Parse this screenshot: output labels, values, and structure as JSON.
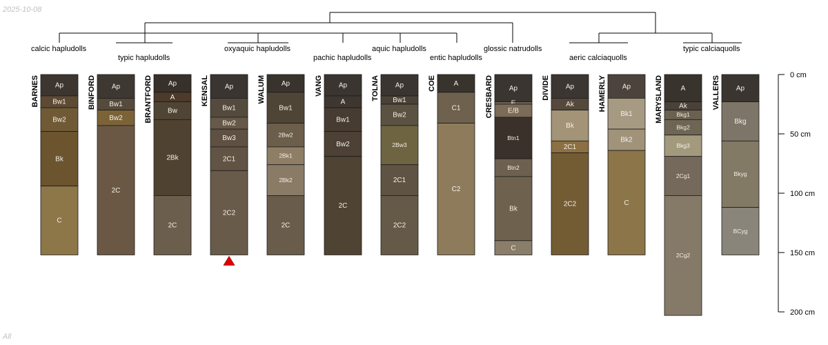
{
  "meta": {
    "date": "2025-10-08",
    "footer": "All"
  },
  "chart_data": {
    "type": "soil-profile-sketch",
    "depth_axis": {
      "unit": "cm",
      "range": [
        0,
        200
      ],
      "ticks": [
        0,
        50,
        100,
        150,
        200
      ],
      "tick_labels": [
        "0 cm",
        "50 cm",
        "100 cm",
        "150 cm",
        "200 cm"
      ]
    },
    "taxonomy_labels": [
      {
        "label": "calcic hapludolls"
      },
      {
        "label": "typic hapludolls"
      },
      {
        "label": "oxyaquic hapludolls"
      },
      {
        "label": "pachic hapludolls"
      },
      {
        "label": "aquic hapludolls"
      },
      {
        "label": "entic hapludolls"
      },
      {
        "label": "glossic natrudolls"
      },
      {
        "label": "aeric calciaquolls"
      },
      {
        "label": "typic calciaquolls"
      }
    ],
    "profiles": [
      {
        "name": "BARNES",
        "horizons": [
          {
            "name": "Ap",
            "top": 0,
            "bottom": 18,
            "color": "#3d3530"
          },
          {
            "name": "Bw1",
            "top": 18,
            "bottom": 28,
            "color": "#5e4a34"
          },
          {
            "name": "Bw2",
            "top": 28,
            "bottom": 48,
            "color": "#705a36"
          },
          {
            "name": "Bk",
            "top": 48,
            "bottom": 94,
            "color": "#6b542e"
          },
          {
            "name": "C",
            "top": 94,
            "bottom": 152,
            "color": "#8d7749"
          }
        ]
      },
      {
        "name": "BINFORD",
        "horizons": [
          {
            "name": "Ap",
            "top": 0,
            "bottom": 20,
            "color": "#3e3833"
          },
          {
            "name": "Bw1",
            "top": 20,
            "bottom": 30,
            "color": "#564a3d"
          },
          {
            "name": "Bw2",
            "top": 30,
            "bottom": 43,
            "color": "#7c6337"
          },
          {
            "name": "2C",
            "top": 43,
            "bottom": 152,
            "color": "#6a5845"
          }
        ]
      },
      {
        "name": "BRANTFORD",
        "horizons": [
          {
            "name": "Ap",
            "top": 0,
            "bottom": 15,
            "color": "#37302b"
          },
          {
            "name": "A",
            "top": 15,
            "bottom": 23,
            "color": "#4c3a2a"
          },
          {
            "name": "Bw",
            "top": 23,
            "bottom": 38,
            "color": "#504434"
          },
          {
            "name": "2Bk",
            "top": 38,
            "bottom": 102,
            "color": "#4f4231"
          },
          {
            "name": "2C",
            "top": 102,
            "bottom": 152,
            "color": "#6b5e4d"
          }
        ]
      },
      {
        "name": "KENSAL",
        "marker": "triangle",
        "horizons": [
          {
            "name": "Ap",
            "top": 0,
            "bottom": 20,
            "color": "#3a3531"
          },
          {
            "name": "Bw1",
            "top": 20,
            "bottom": 36,
            "color": "#554a3e"
          },
          {
            "name": "Bw2",
            "top": 36,
            "bottom": 46,
            "color": "#66594a"
          },
          {
            "name": "Bw3",
            "top": 46,
            "bottom": 61,
            "color": "#5e5142"
          },
          {
            "name": "2C1",
            "top": 61,
            "bottom": 81,
            "color": "#625444"
          },
          {
            "name": "2C2",
            "top": 81,
            "bottom": 152,
            "color": "#695b4a"
          }
        ]
      },
      {
        "name": "WALUM",
        "horizons": [
          {
            "name": "Ap",
            "top": 0,
            "bottom": 15,
            "color": "#39332e"
          },
          {
            "name": "Bw1",
            "top": 15,
            "bottom": 41,
            "color": "#4f4537"
          },
          {
            "name": "2Bw2",
            "top": 41,
            "bottom": 61,
            "color": "#6b5e4a"
          },
          {
            "name": "2Bk1",
            "top": 61,
            "bottom": 76,
            "color": "#8f7e66"
          },
          {
            "name": "2Bk2",
            "top": 76,
            "bottom": 102,
            "color": "#8a7b67"
          },
          {
            "name": "2C",
            "top": 102,
            "bottom": 152,
            "color": "#6a5c4a"
          }
        ]
      },
      {
        "name": "VANG",
        "horizons": [
          {
            "name": "Ap",
            "top": 0,
            "bottom": 18,
            "color": "#3a3530"
          },
          {
            "name": "A",
            "top": 18,
            "bottom": 28,
            "color": "#3e3630"
          },
          {
            "name": "Bw1",
            "top": 28,
            "bottom": 48,
            "color": "#463c32"
          },
          {
            "name": "Bw2",
            "top": 48,
            "bottom": 69,
            "color": "#4c4134"
          },
          {
            "name": "2C",
            "top": 69,
            "bottom": 152,
            "color": "#4f4333"
          }
        ]
      },
      {
        "name": "TOLNA",
        "horizons": [
          {
            "name": "Ap",
            "top": 0,
            "bottom": 18,
            "color": "#3a3530"
          },
          {
            "name": "Bw1",
            "top": 18,
            "bottom": 25,
            "color": "#4a4236"
          },
          {
            "name": "Bw2",
            "top": 25,
            "bottom": 43,
            "color": "#5c5241"
          },
          {
            "name": "2Bw3",
            "top": 43,
            "bottom": 76,
            "color": "#6e6441"
          },
          {
            "name": "2C1",
            "top": 76,
            "bottom": 102,
            "color": "#5f5443"
          },
          {
            "name": "2C2",
            "top": 102,
            "bottom": 152,
            "color": "#655a48"
          }
        ]
      },
      {
        "name": "COE",
        "horizons": [
          {
            "name": "A",
            "top": 0,
            "bottom": 15,
            "color": "#39332e"
          },
          {
            "name": "C1",
            "top": 15,
            "bottom": 41,
            "color": "#6e614d"
          },
          {
            "name": "C2",
            "top": 41,
            "bottom": 152,
            "color": "#8d7b5c"
          }
        ]
      },
      {
        "name": "CRESBARD",
        "horizons": [
          {
            "name": "Ap",
            "top": 0,
            "bottom": 23,
            "color": "#3a3530"
          },
          {
            "name": "E",
            "top": 23,
            "bottom": 25,
            "color": "#6f6452"
          },
          {
            "name": "E/B",
            "top": 25,
            "bottom": 36,
            "color": "#7b6b57"
          },
          {
            "name": "Btn1",
            "top": 36,
            "bottom": 71,
            "color": "#3a312b"
          },
          {
            "name": "Btn2",
            "top": 71,
            "bottom": 86,
            "color": "#6e604f"
          },
          {
            "name": "Bk",
            "top": 86,
            "bottom": 140,
            "color": "#6e624f"
          },
          {
            "name": "C",
            "top": 140,
            "bottom": 152,
            "color": "#8a7d69"
          }
        ]
      },
      {
        "name": "DIVIDE",
        "horizons": [
          {
            "name": "Ap",
            "top": 0,
            "bottom": 20,
            "color": "#3b3631"
          },
          {
            "name": "Ak",
            "top": 20,
            "bottom": 30,
            "color": "#55493d"
          },
          {
            "name": "Bk",
            "top": 30,
            "bottom": 56,
            "color": "#a39377"
          },
          {
            "name": "2C1",
            "top": 56,
            "bottom": 66,
            "color": "#8c7041"
          },
          {
            "name": "2C2",
            "top": 66,
            "bottom": 152,
            "color": "#735c34"
          }
        ]
      },
      {
        "name": "HAMERLY",
        "horizons": [
          {
            "name": "Ap",
            "top": 0,
            "bottom": 20,
            "color": "#4b433c"
          },
          {
            "name": "Bk1",
            "top": 20,
            "bottom": 46,
            "color": "#a79a82"
          },
          {
            "name": "Bk2",
            "top": 46,
            "bottom": 64,
            "color": "#a0937a"
          },
          {
            "name": "C",
            "top": 64,
            "bottom": 152,
            "color": "#8c7549"
          }
        ]
      },
      {
        "name": "MARYSLAND",
        "horizons": [
          {
            "name": "A",
            "top": 0,
            "bottom": 23,
            "color": "#39332e"
          },
          {
            "name": "Ak",
            "top": 23,
            "bottom": 30,
            "color": "#4a423a"
          },
          {
            "name": "Bkg1",
            "top": 30,
            "bottom": 38,
            "color": "#6b6150"
          },
          {
            "name": "Bkg2",
            "top": 38,
            "bottom": 51,
            "color": "#6e6554"
          },
          {
            "name": "Bkg3",
            "top": 51,
            "bottom": 69,
            "color": "#a39a7e"
          },
          {
            "name": "2Cg1",
            "top": 69,
            "bottom": 102,
            "color": "#74695a"
          },
          {
            "name": "2Cg2",
            "top": 102,
            "bottom": 203,
            "color": "#857a68"
          }
        ]
      },
      {
        "name": "VALLERS",
        "horizons": [
          {
            "name": "Ap",
            "top": 0,
            "bottom": 23,
            "color": "#3a3530"
          },
          {
            "name": "Bkg",
            "top": 23,
            "bottom": 56,
            "color": "#7d7568"
          },
          {
            "name": "Bkyg",
            "top": 56,
            "bottom": 112,
            "color": "#827a65"
          },
          {
            "name": "BCyg",
            "top": 112,
            "bottom": 152,
            "color": "#8a857b"
          }
        ]
      }
    ]
  }
}
